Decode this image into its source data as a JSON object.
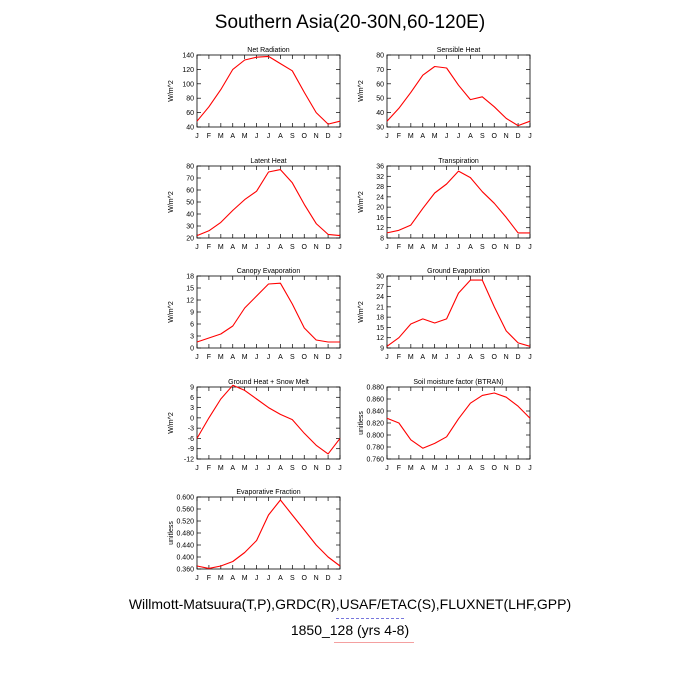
{
  "title": "Southern Asia(20-30N,60-120E)",
  "footer": {
    "sources": "Willmott-Matsuura(T,P),GRDC(R),USAF/ETAC(S),FLUXNET(LHF,GPP)",
    "case": "1850_128 (yrs 4-8)"
  },
  "colors": {
    "line": "#ff0000",
    "axis": "#000000",
    "background": "#ffffff"
  },
  "chart_data": [
    {
      "type": "line",
      "title": "Net Radiation",
      "ylabel": "W/m^2",
      "x": [
        "J",
        "F",
        "M",
        "A",
        "M",
        "J",
        "J",
        "A",
        "S",
        "O",
        "N",
        "D",
        "J"
      ],
      "values": [
        48,
        68,
        92,
        120,
        133,
        137,
        138,
        128,
        118,
        88,
        60,
        44,
        48
      ],
      "ylim": [
        40,
        140
      ],
      "yticks": [
        "40",
        "60",
        "80",
        "100",
        "120",
        "140"
      ]
    },
    {
      "type": "line",
      "title": "Sensible Heat",
      "ylabel": "W/m^2",
      "x": [
        "J",
        "F",
        "M",
        "A",
        "M",
        "J",
        "J",
        "A",
        "S",
        "O",
        "N",
        "D",
        "J"
      ],
      "values": [
        34,
        43,
        54,
        66,
        72,
        71,
        59,
        49,
        51,
        44,
        36,
        31,
        34
      ],
      "ylim": [
        30,
        80
      ],
      "yticks": [
        "30",
        "40",
        "50",
        "60",
        "70",
        "80"
      ]
    },
    {
      "type": "line",
      "title": "Latent Heat",
      "ylabel": "W/m^2",
      "x": [
        "J",
        "F",
        "M",
        "A",
        "M",
        "J",
        "J",
        "A",
        "S",
        "O",
        "N",
        "D",
        "J"
      ],
      "values": [
        22,
        26,
        33,
        43,
        52,
        59,
        75,
        77,
        66,
        48,
        32,
        23,
        22
      ],
      "ylim": [
        20,
        80
      ],
      "yticks": [
        "20",
        "30",
        "40",
        "50",
        "60",
        "70",
        "80"
      ]
    },
    {
      "type": "line",
      "title": "Transpiration",
      "ylabel": "W/m^2",
      "x": [
        "J",
        "F",
        "M",
        "A",
        "M",
        "J",
        "J",
        "A",
        "S",
        "O",
        "N",
        "D",
        "J"
      ],
      "values": [
        10,
        11,
        13,
        19.5,
        25.5,
        29,
        34,
        31.5,
        26,
        21.5,
        16,
        10,
        10
      ],
      "ylim": [
        8,
        36
      ],
      "yticks": [
        "8",
        "12",
        "16",
        "20",
        "24",
        "28",
        "32",
        "36"
      ]
    },
    {
      "type": "line",
      "title": "Canopy Evaporation",
      "ylabel": "W/m^2",
      "x": [
        "J",
        "F",
        "M",
        "A",
        "M",
        "J",
        "J",
        "A",
        "S",
        "O",
        "N",
        "D",
        "J"
      ],
      "values": [
        1.5,
        2.5,
        3.5,
        5.5,
        10,
        13,
        16,
        16.2,
        11,
        5,
        2,
        1.5,
        1.5
      ],
      "ylim": [
        0,
        18
      ],
      "yticks": [
        "0",
        "3",
        "6",
        "9",
        "12",
        "15",
        "18"
      ]
    },
    {
      "type": "line",
      "title": "Ground Evaporation",
      "ylabel": "W/m^2",
      "x": [
        "J",
        "F",
        "M",
        "A",
        "M",
        "J",
        "J",
        "A",
        "S",
        "O",
        "N",
        "D",
        "J"
      ],
      "values": [
        9.5,
        12,
        16,
        17.5,
        16.3,
        17.5,
        25,
        28.8,
        28.8,
        21,
        14,
        10.5,
        9.5
      ],
      "ylim": [
        9,
        30
      ],
      "yticks": [
        "9",
        "12",
        "15",
        "18",
        "21",
        "24",
        "27",
        "30"
      ]
    },
    {
      "type": "line",
      "title": "Ground Heat + Snow Melt",
      "ylabel": "W/m^2",
      "x": [
        "J",
        "F",
        "M",
        "A",
        "M",
        "J",
        "J",
        "A",
        "S",
        "O",
        "N",
        "D",
        "J"
      ],
      "values": [
        -6,
        0,
        5.5,
        9.5,
        8,
        5.5,
        3,
        1,
        -0.5,
        -4.5,
        -8,
        -10.5,
        -6
      ],
      "ylim": [
        -12,
        9
      ],
      "yticks": [
        "-12",
        "-9",
        "-6",
        "-3",
        "0",
        "3",
        "6",
        "9"
      ]
    },
    {
      "type": "line",
      "title": "Soil moisture factor (BTRAN)",
      "ylabel": "unitless",
      "x": [
        "J",
        "F",
        "M",
        "A",
        "M",
        "J",
        "J",
        "A",
        "S",
        "O",
        "N",
        "D",
        "J"
      ],
      "values": [
        0.828,
        0.82,
        0.792,
        0.778,
        0.786,
        0.797,
        0.827,
        0.853,
        0.866,
        0.87,
        0.863,
        0.848,
        0.828
      ],
      "ylim": [
        0.76,
        0.88
      ],
      "yticks": [
        "0.760",
        "0.780",
        "0.800",
        "0.820",
        "0.840",
        "0.860",
        "0.880"
      ]
    },
    {
      "type": "line",
      "title": "Evaporative Fraction",
      "ylabel": "unitless",
      "x": [
        "J",
        "F",
        "M",
        "A",
        "M",
        "J",
        "J",
        "A",
        "S",
        "O",
        "N",
        "D",
        "J"
      ],
      "values": [
        0.37,
        0.362,
        0.37,
        0.385,
        0.415,
        0.455,
        0.54,
        0.59,
        0.54,
        0.49,
        0.44,
        0.4,
        0.37
      ],
      "ylim": [
        0.36,
        0.6
      ],
      "yticks": [
        "0.360",
        "0.400",
        "0.440",
        "0.480",
        "0.520",
        "0.560",
        "0.600"
      ]
    }
  ]
}
